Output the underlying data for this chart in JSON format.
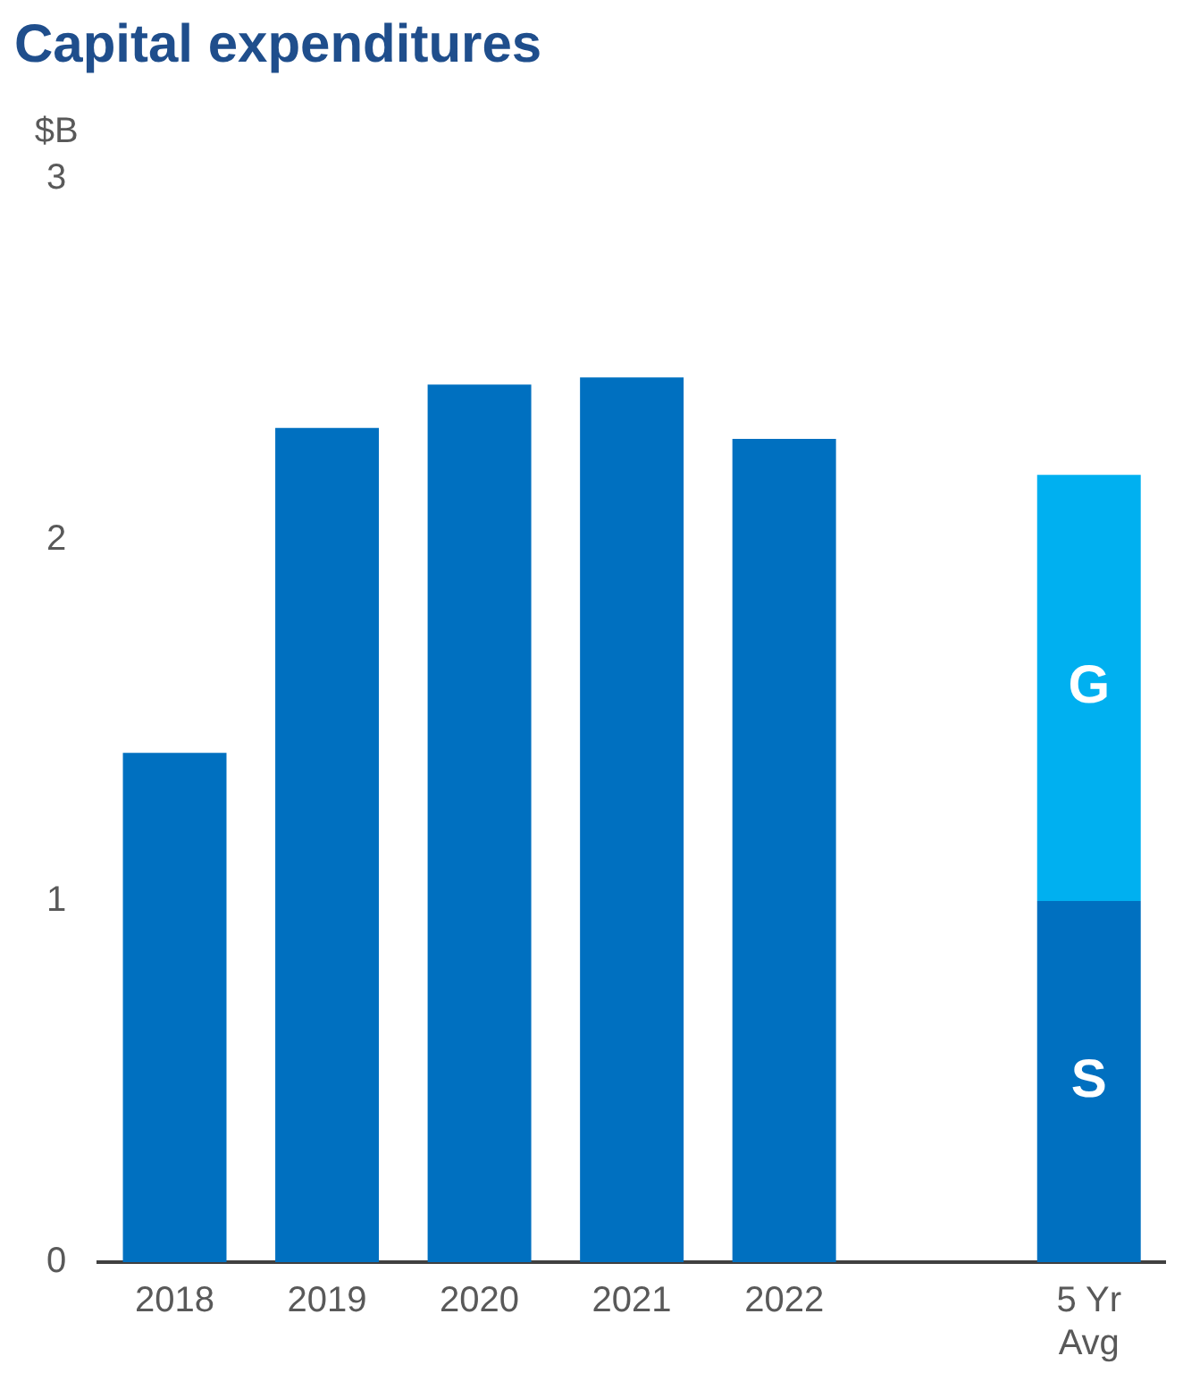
{
  "chart_data": {
    "type": "bar",
    "title": "Capital expenditures",
    "ylabel": "$B",
    "categories": [
      "2018",
      "2019",
      "2020",
      "2021",
      "2022",
      null,
      "5 Yr Avg"
    ],
    "stacked": true,
    "series": [
      {
        "name": "S",
        "color": "#0070c0",
        "values": [
          1.41,
          2.31,
          2.43,
          2.45,
          2.28,
          null,
          1.0
        ]
      },
      {
        "name": "G",
        "color": "#00b0f0",
        "values": [
          null,
          null,
          null,
          null,
          null,
          null,
          1.18
        ]
      }
    ],
    "ylim": [
      0,
      3
    ],
    "yticks": [
      0,
      1,
      2,
      3
    ],
    "grid": false,
    "legend": false
  }
}
